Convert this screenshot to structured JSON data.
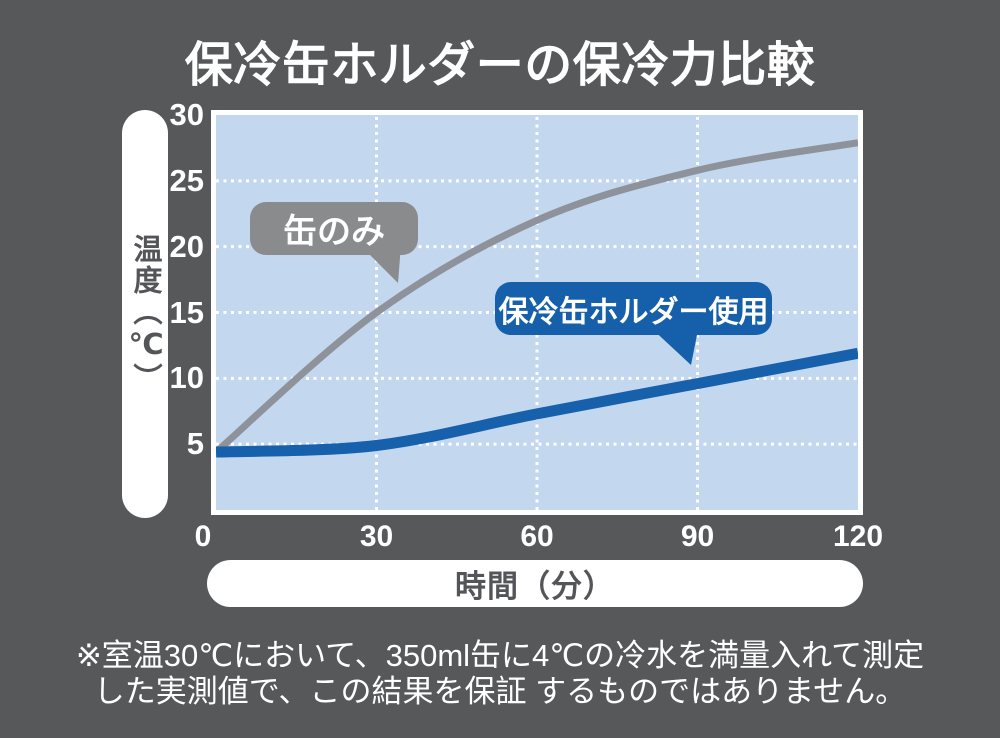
{
  "page": {
    "background": "#57585a"
  },
  "chart_data": {
    "type": "line",
    "title": "保冷缶ホルダーの保冷力比較",
    "xlabel": "時間（分）",
    "ylabel": "温度（℃）",
    "x_ticks": [
      0,
      30,
      60,
      90,
      120
    ],
    "y_ticks": [
      0,
      5,
      10,
      15,
      20,
      25,
      30
    ],
    "xlim": [
      0,
      120
    ],
    "ylim": [
      0,
      30
    ],
    "grid": "dotted-white",
    "plot_bg": "#c3d7ef",
    "series": [
      {
        "name": "缶のみ",
        "color": "#8e929a",
        "x": [
          0,
          30,
          60,
          90,
          120
        ],
        "values": [
          4.4,
          15.0,
          22.0,
          25.8,
          27.9
        ]
      },
      {
        "name": "保冷缶ホルダー使用",
        "color": "#1660ac",
        "x": [
          0,
          30,
          60,
          90,
          120
        ],
        "values": [
          4.4,
          4.9,
          7.3,
          9.6,
          11.9
        ]
      }
    ],
    "annotations": [
      {
        "label": "缶のみ",
        "bubble_color": "#8a8b8d",
        "text_color": "#ffffff"
      },
      {
        "label": "保冷缶ホルダー使用",
        "bubble_color": "#165fab",
        "text_color": "#ffffff"
      }
    ]
  },
  "footnote": {
    "line1": "※室温30℃において、350ml缶に4℃の冷水を満量入れて測定",
    "line2": "した実測値で、この結果を保証 するものではありません。"
  }
}
